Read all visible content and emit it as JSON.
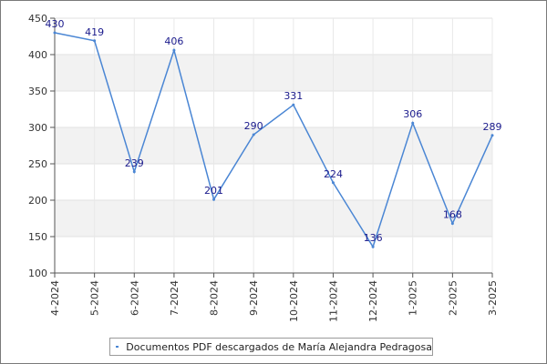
{
  "chart_data": {
    "type": "line",
    "categories": [
      "4-2024",
      "5-2024",
      "6-2024",
      "7-2024",
      "8-2024",
      "9-2024",
      "10-2024",
      "11-2024",
      "12-2024",
      "1-2025",
      "2-2025",
      "3-2025"
    ],
    "series": [
      {
        "name": "Documentos PDF descargados de María Alejandra Pedragosa",
        "values": [
          430,
          419,
          239,
          406,
          201,
          290,
          331,
          224,
          136,
          306,
          168,
          289
        ],
        "color": "#4a86d4"
      }
    ],
    "ylim": [
      100,
      450
    ],
    "yticks": [
      100,
      150,
      200,
      250,
      300,
      350,
      400,
      450
    ],
    "grid": true,
    "band_color": "#f2f2f2",
    "label_color": "#1a1a8c",
    "legend_position": "bottom"
  }
}
